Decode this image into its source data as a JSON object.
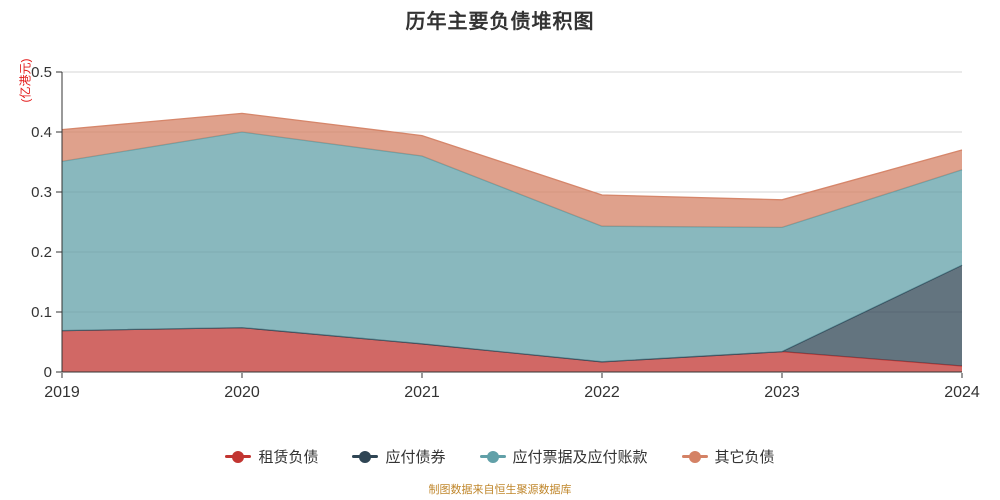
{
  "title": "历年主要负债堆积图",
  "y_axis_name": "(亿港元)",
  "footer": "制图数据来自恒生聚源数据库",
  "colors": {
    "axis": "#333333",
    "grid_line": "#d4d4d4",
    "tick_label": "#333333",
    "y_axis_name": "#e31a1a",
    "title": "#333333",
    "footer": "#c0872c"
  },
  "chart_data": {
    "type": "area",
    "stacked": true,
    "title": "历年主要负债堆积图",
    "xlabel": "",
    "ylabel": "(亿港元)",
    "categories": [
      "2019",
      "2020",
      "2021",
      "2022",
      "2023",
      "2024"
    ],
    "series": [
      {
        "name": "租赁负债",
        "color": "#c23531",
        "values": [
          0.069,
          0.074,
          0.047,
          0.017,
          0.034,
          0.01
        ]
      },
      {
        "name": "应付债券",
        "color": "#2f4554",
        "values": [
          0,
          0,
          0,
          0,
          0,
          0.168
        ]
      },
      {
        "name": "应付票据及应付账款",
        "color": "#61a0a8",
        "values": [
          0.282,
          0.326,
          0.313,
          0.226,
          0.207,
          0.159
        ]
      },
      {
        "name": "其它负债",
        "color": "#d48265",
        "values": [
          0.053,
          0.031,
          0.034,
          0.052,
          0.046,
          0.033
        ]
      }
    ],
    "ylim": [
      0,
      0.5
    ],
    "y_ticks": [
      0,
      0.1,
      0.2,
      0.3,
      0.4,
      0.5
    ],
    "y_tick_labels": [
      "0",
      "0.1",
      "0.2",
      "0.3",
      "0.4",
      "0.5"
    ],
    "grid": true,
    "area_opacity": 0.75,
    "legend_position": "bottom"
  }
}
